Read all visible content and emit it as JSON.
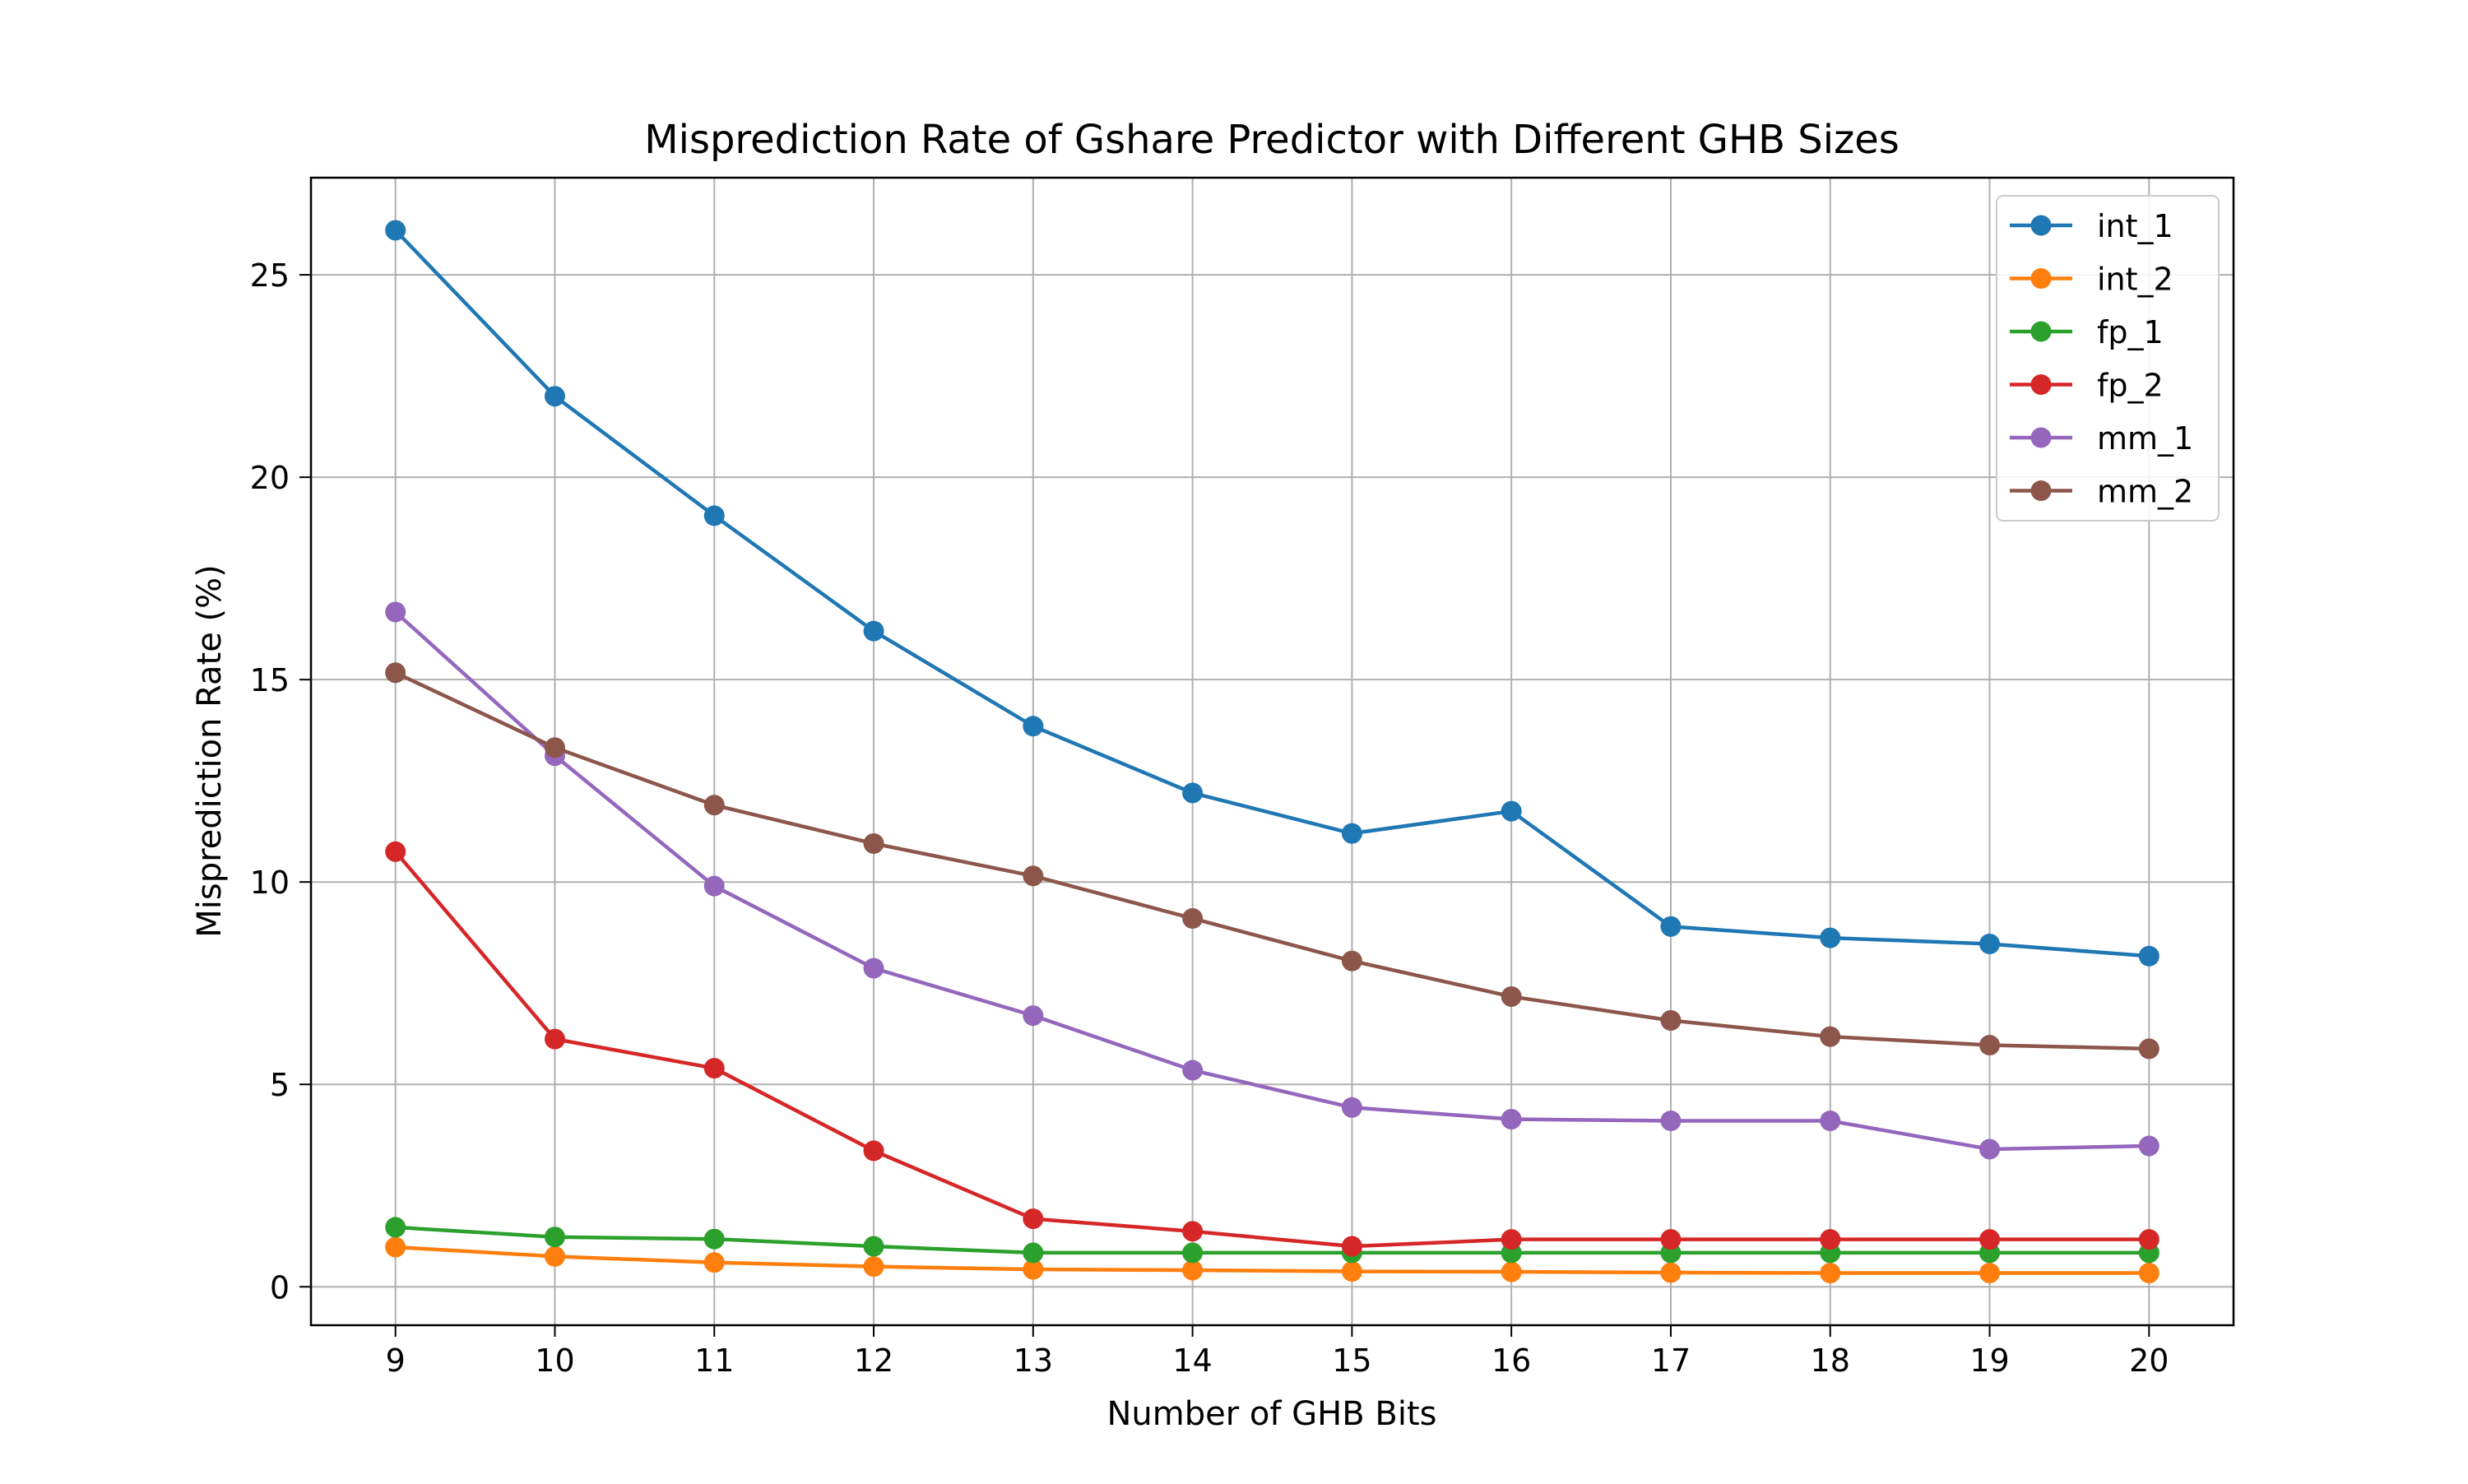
{
  "chart_data": {
    "type": "line",
    "title": "Misprediction Rate of Gshare Predictor with Different GHB Sizes",
    "xlabel": "Number of GHB Bits",
    "ylabel": "Misprediction Rate (%)",
    "x": [
      9,
      10,
      11,
      12,
      13,
      14,
      15,
      16,
      17,
      18,
      19,
      20
    ],
    "xlim": [
      8.47,
      20.53
    ],
    "ylim": [
      -0.95,
      27.4
    ],
    "yticks": [
      0,
      5,
      10,
      15,
      20,
      25
    ],
    "grid": true,
    "legend_position": "top-right",
    "series": [
      {
        "name": "int_1",
        "color": "#1f77b4",
        "values": [
          26.1,
          22.0,
          19.05,
          16.2,
          13.85,
          12.2,
          11.2,
          11.75,
          8.9,
          8.62,
          8.47,
          8.17
        ]
      },
      {
        "name": "int_2",
        "color": "#ff7f0e",
        "values": [
          0.98,
          0.75,
          0.6,
          0.5,
          0.43,
          0.41,
          0.38,
          0.37,
          0.35,
          0.34,
          0.34,
          0.34
        ]
      },
      {
        "name": "fp_1",
        "color": "#2ca02c",
        "values": [
          1.47,
          1.23,
          1.18,
          1.0,
          0.84,
          0.84,
          0.84,
          0.84,
          0.84,
          0.84,
          0.84,
          0.84
        ]
      },
      {
        "name": "fp_2",
        "color": "#d62728",
        "values": [
          10.75,
          6.12,
          5.4,
          3.36,
          1.68,
          1.37,
          1.0,
          1.17,
          1.17,
          1.17,
          1.17,
          1.17
        ]
      },
      {
        "name": "mm_1",
        "color": "#9467bd",
        "values": [
          16.67,
          13.12,
          9.9,
          7.87,
          6.7,
          5.35,
          4.43,
          4.14,
          4.1,
          4.1,
          3.4,
          3.48
        ]
      },
      {
        "name": "mm_2",
        "color": "#8c564b",
        "values": [
          15.17,
          13.32,
          11.9,
          10.95,
          10.15,
          9.1,
          8.05,
          7.17,
          6.58,
          6.18,
          5.97,
          5.88
        ]
      }
    ]
  }
}
